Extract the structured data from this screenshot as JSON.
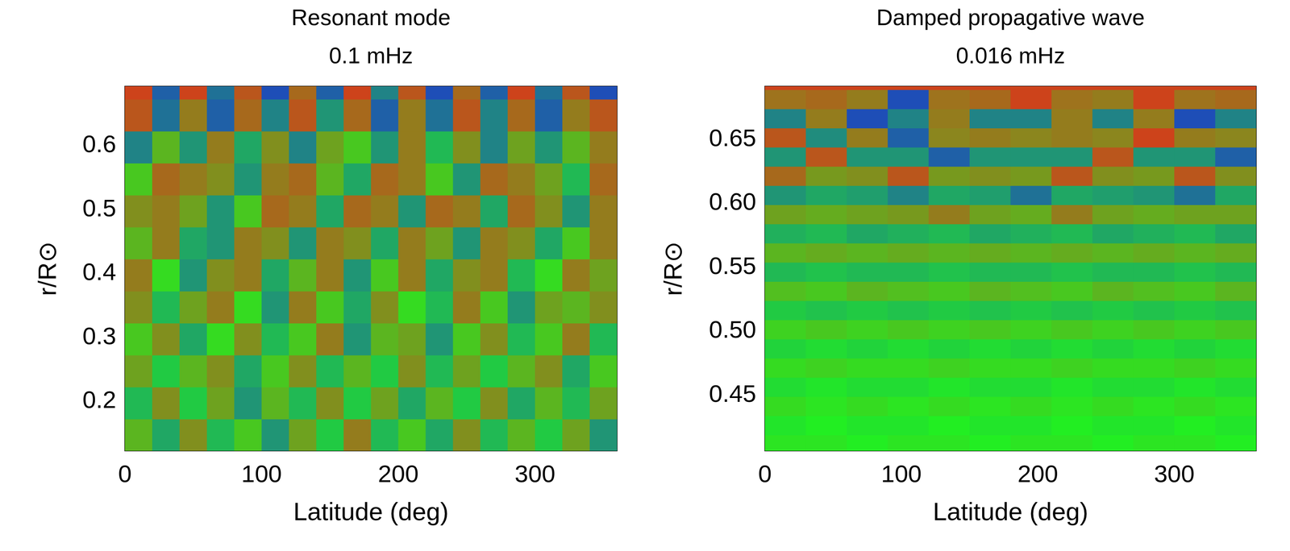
{
  "chart_data": [
    {
      "type": "heatmap",
      "title": "Resonant mode",
      "subtitle": "0.1 mHz",
      "x_label": "Latitude (deg)",
      "y_label": "r/R⊙",
      "xlim": [
        0,
        360
      ],
      "xticks": [
        0,
        100,
        200,
        300
      ],
      "ylim": [
        0.12,
        0.69
      ],
      "yticks": [
        0.2,
        0.3,
        0.4,
        0.5,
        0.6
      ],
      "zlim": [
        -1,
        1
      ],
      "colors": [
        "#1e3cc8",
        "#22ee22",
        "#e0301a"
      ],
      "x": [
        10,
        30,
        50,
        70,
        90,
        110,
        130,
        150,
        170,
        190,
        210,
        230,
        250,
        270,
        290,
        310,
        330,
        350
      ],
      "y": [
        0.145,
        0.195,
        0.245,
        0.295,
        0.345,
        0.395,
        0.445,
        0.495,
        0.545,
        0.595,
        0.645,
        0.695
      ],
      "values": [
        [
          0.3,
          -0.4,
          0.5,
          -0.3,
          0.2,
          -0.5,
          0.4,
          -0.2,
          0.6,
          -0.3,
          0.2,
          -0.4,
          0.5,
          -0.3,
          0.3,
          -0.2,
          0.4,
          -0.5
        ],
        [
          -0.3,
          0.5,
          -0.2,
          0.4,
          -0.5,
          0.3,
          -0.3,
          0.5,
          -0.2,
          0.4,
          -0.4,
          0.3,
          -0.2,
          0.5,
          -0.4,
          0.3,
          -0.3,
          0.4
        ],
        [
          0.4,
          -0.2,
          0.3,
          0.5,
          -0.4,
          0.2,
          0.5,
          -0.3,
          0.3,
          -0.2,
          0.5,
          -0.3,
          0.4,
          -0.2,
          0.3,
          0.5,
          -0.4,
          0.2
        ],
        [
          0.2,
          0.5,
          -0.4,
          0.1,
          0.5,
          -0.3,
          0.2,
          0.6,
          -0.5,
          0.3,
          0.4,
          -0.5,
          0.2,
          0.5,
          -0.3,
          0.2,
          0.6,
          -0.3
        ],
        [
          0.5,
          -0.3,
          0.4,
          0.6,
          0.1,
          -0.5,
          0.6,
          0.2,
          -0.4,
          0.5,
          0.1,
          -0.3,
          0.6,
          0.2,
          -0.5,
          0.4,
          0.3,
          0.5
        ],
        [
          0.6,
          0.1,
          -0.5,
          0.5,
          0.6,
          -0.4,
          0.3,
          0.6,
          -0.5,
          0.2,
          0.6,
          -0.4,
          0.5,
          0.6,
          -0.3,
          0.1,
          0.6,
          0.4
        ],
        [
          0.3,
          0.6,
          -0.4,
          -0.5,
          0.6,
          0.5,
          -0.5,
          0.6,
          0.5,
          -0.4,
          0.6,
          0.4,
          -0.5,
          0.6,
          0.5,
          -0.4,
          0.2,
          0.6
        ],
        [
          0.5,
          0.6,
          0.4,
          -0.5,
          0.2,
          0.7,
          0.6,
          -0.4,
          0.7,
          0.6,
          -0.5,
          0.7,
          0.6,
          -0.4,
          0.7,
          0.5,
          -0.5,
          0.6
        ],
        [
          0.2,
          0.7,
          0.6,
          0.5,
          -0.5,
          0.6,
          0.7,
          0.3,
          -0.4,
          0.7,
          0.6,
          0.2,
          -0.5,
          0.7,
          0.6,
          0.4,
          -0.3,
          0.7
        ],
        [
          -0.6,
          0.3,
          -0.5,
          0.6,
          -0.4,
          0.5,
          -0.6,
          0.4,
          0.2,
          -0.5,
          0.6,
          -0.3,
          0.5,
          -0.6,
          0.4,
          -0.5,
          0.3,
          0.6
        ],
        [
          0.8,
          -0.7,
          0.6,
          -0.8,
          0.7,
          -0.6,
          0.8,
          -0.5,
          0.7,
          -0.8,
          0.6,
          -0.7,
          0.8,
          -0.6,
          0.7,
          -0.8,
          0.6,
          0.8
        ],
        [
          0.9,
          -0.8,
          0.9,
          -0.7,
          0.8,
          -0.9,
          0.7,
          -0.8,
          0.9,
          -0.6,
          0.8,
          -0.9,
          0.7,
          -0.8,
          0.9,
          -0.7,
          0.8,
          -0.9
        ]
      ]
    },
    {
      "type": "heatmap",
      "title": "Damped propagative wave",
      "subtitle": "0.016 mHz",
      "x_label": "Latitude (deg)",
      "y_label": "r/R⊙",
      "xlim": [
        0,
        360
      ],
      "xticks": [
        0,
        100,
        200,
        300
      ],
      "ylim": [
        0.405,
        0.69
      ],
      "yticks": [
        0.45,
        {
          "value": 0.5,
          "label": "0.50"
        },
        0.55,
        {
          "value": 0.6,
          "label": "0.60"
        },
        0.65
      ],
      "zlim": [
        -1,
        1
      ],
      "colors": [
        "#1e3cc8",
        "#22ee22",
        "#e0301a"
      ],
      "x": [
        15,
        45,
        75,
        105,
        135,
        165,
        195,
        225,
        255,
        285,
        315,
        345
      ],
      "y": [
        0.41,
        0.425,
        0.44,
        0.455,
        0.47,
        0.485,
        0.5,
        0.515,
        0.53,
        0.545,
        0.56,
        0.575,
        0.59,
        0.605,
        0.62,
        0.635,
        0.65,
        0.665,
        0.68,
        0.695
      ],
      "values": [
        [
          0.05,
          0.05,
          0.0,
          0.05,
          0.05,
          0.0,
          0.05,
          0.05,
          0.0,
          0.05,
          0.05,
          0.0
        ],
        [
          -0.05,
          0.0,
          -0.05,
          -0.05,
          0.0,
          -0.05,
          -0.05,
          0.0,
          -0.05,
          -0.05,
          0.0,
          -0.05
        ],
        [
          0.1,
          0.05,
          0.1,
          0.05,
          0.1,
          0.05,
          0.1,
          0.05,
          0.1,
          0.05,
          0.1,
          0.05
        ],
        [
          -0.1,
          -0.05,
          -0.1,
          -0.1,
          -0.05,
          -0.1,
          -0.1,
          -0.05,
          -0.1,
          -0.1,
          -0.05,
          -0.1
        ],
        [
          0.1,
          0.15,
          0.1,
          0.1,
          0.15,
          0.1,
          0.1,
          0.15,
          0.1,
          0.1,
          0.15,
          0.1
        ],
        [
          -0.15,
          -0.1,
          -0.15,
          -0.1,
          -0.15,
          -0.1,
          -0.15,
          -0.1,
          -0.15,
          -0.1,
          -0.15,
          -0.1
        ],
        [
          0.15,
          0.2,
          0.15,
          0.2,
          0.15,
          0.2,
          0.15,
          0.2,
          0.15,
          0.2,
          0.15,
          0.2
        ],
        [
          -0.2,
          -0.25,
          -0.2,
          -0.25,
          -0.2,
          -0.25,
          -0.2,
          -0.25,
          -0.2,
          -0.25,
          -0.2,
          -0.25
        ],
        [
          0.25,
          0.2,
          0.3,
          0.25,
          0.2,
          0.3,
          0.25,
          0.2,
          0.3,
          0.25,
          0.2,
          0.3
        ],
        [
          -0.3,
          -0.25,
          -0.3,
          -0.3,
          -0.25,
          -0.3,
          -0.3,
          -0.25,
          -0.3,
          -0.3,
          -0.25,
          -0.3
        ],
        [
          0.3,
          0.35,
          0.3,
          0.35,
          0.3,
          0.35,
          0.3,
          0.35,
          0.3,
          0.35,
          0.3,
          0.35
        ],
        [
          -0.35,
          -0.3,
          -0.4,
          -0.35,
          -0.3,
          -0.4,
          -0.35,
          -0.3,
          -0.4,
          -0.35,
          -0.3,
          -0.4
        ],
        [
          0.4,
          0.35,
          0.4,
          0.45,
          0.6,
          0.4,
          0.35,
          0.6,
          0.4,
          0.35,
          0.4,
          0.4
        ],
        [
          -0.5,
          -0.4,
          -0.45,
          -0.6,
          -0.4,
          -0.45,
          -0.7,
          -0.4,
          -0.45,
          -0.5,
          -0.7,
          -0.4
        ],
        [
          0.7,
          0.45,
          0.5,
          0.8,
          0.45,
          0.5,
          0.45,
          0.8,
          0.5,
          0.45,
          0.8,
          0.5
        ],
        [
          -0.5,
          0.8,
          -0.5,
          -0.5,
          -0.8,
          -0.5,
          -0.5,
          -0.5,
          0.8,
          -0.5,
          -0.5,
          -0.8
        ],
        [
          0.8,
          -0.55,
          0.6,
          -0.8,
          0.55,
          0.6,
          0.55,
          0.6,
          0.55,
          0.9,
          0.6,
          0.55
        ],
        [
          -0.6,
          0.6,
          -0.9,
          -0.6,
          0.6,
          -0.6,
          -0.6,
          0.6,
          -0.6,
          0.6,
          -0.9,
          -0.6
        ],
        [
          0.65,
          0.7,
          0.6,
          -0.9,
          0.65,
          0.7,
          0.9,
          0.65,
          0.6,
          0.9,
          0.65,
          0.7
        ],
        [
          0.9,
          0.9,
          0.9,
          0.9,
          0.9,
          0.9,
          0.9,
          0.9,
          0.9,
          0.9,
          0.9,
          0.9
        ]
      ]
    }
  ]
}
